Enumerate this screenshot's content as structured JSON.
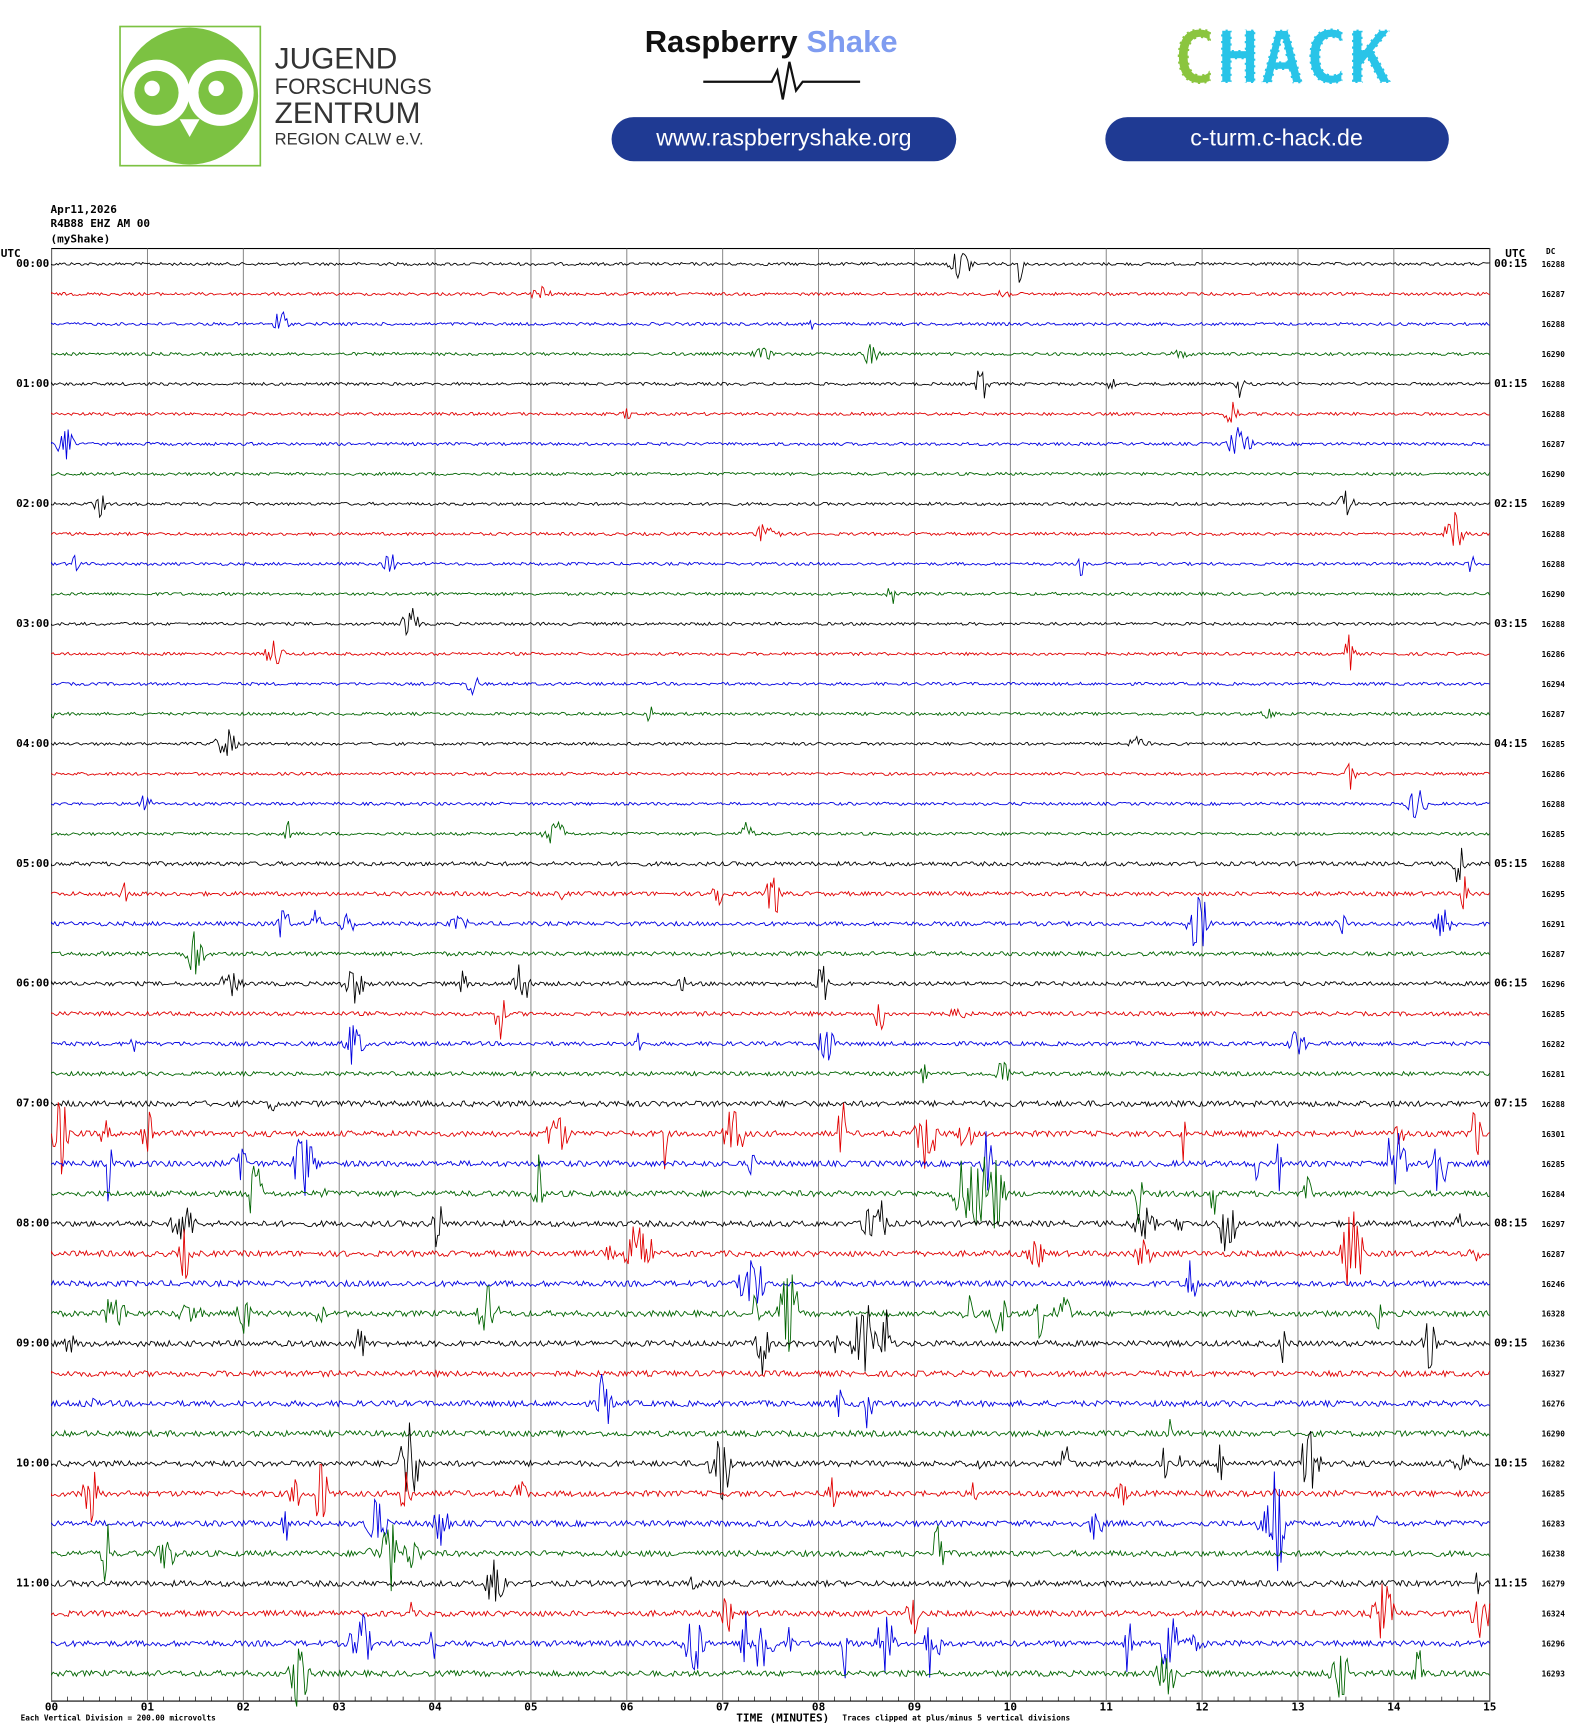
{
  "header": {
    "org_lines": [
      "JUGEND",
      "FORSCHUNGS",
      "ZENTRUM",
      "REGION CALW e.V."
    ],
    "brand_first": "Raspberry",
    "brand_second": "Shake",
    "brand_url": "www.raspberryshake.org",
    "chack": "CHACK",
    "chack_url": "c-turm.c-hack.de"
  },
  "helicorder": {
    "date": "Apr11,2026",
    "station": "R4B88 EHZ AM 00",
    "source": "(myShake)",
    "left_unit": "UTC",
    "right_unit": "UTC",
    "dc_label": "DC",
    "left_times": [
      "00:00",
      "01:00",
      "02:00",
      "03:00",
      "04:00",
      "05:00",
      "06:00",
      "07:00",
      "08:00",
      "09:00",
      "10:00",
      "11:00"
    ],
    "right_times": [
      "00:15",
      "01:15",
      "02:15",
      "03:15",
      "04:15",
      "05:15",
      "06:15",
      "07:15",
      "08:15",
      "09:15",
      "10:15",
      "11:15"
    ],
    "dc": [
      16288,
      16287,
      16288,
      16290,
      16288,
      16288,
      16287,
      16290,
      16289,
      16288,
      16288,
      16290,
      16288,
      16286,
      16294,
      16287,
      16285,
      16286,
      16288,
      16285,
      16288,
      16295,
      16291,
      16287,
      16296,
      16285,
      16282,
      16281,
      16288,
      16301,
      16285,
      16284,
      16297,
      16287,
      16246,
      16328,
      16236,
      16327,
      16276,
      16290,
      16282,
      16285,
      16283,
      16238,
      16279,
      16324,
      16296,
      16293
    ],
    "minutes": [
      "00",
      "01",
      "02",
      "03",
      "04",
      "05",
      "06",
      "07",
      "08",
      "09",
      "10",
      "11",
      "12",
      "13",
      "14",
      "15"
    ],
    "x_title": "TIME (MINUTES)",
    "scale_note": "Each Vertical Division =  200.00 microvolts",
    "clip_note": "Traces clipped at plus/minus 5 vertical divisions",
    "trace_colors": [
      "#000000",
      "#e00000",
      "#0000e0",
      "#006400"
    ]
  }
}
